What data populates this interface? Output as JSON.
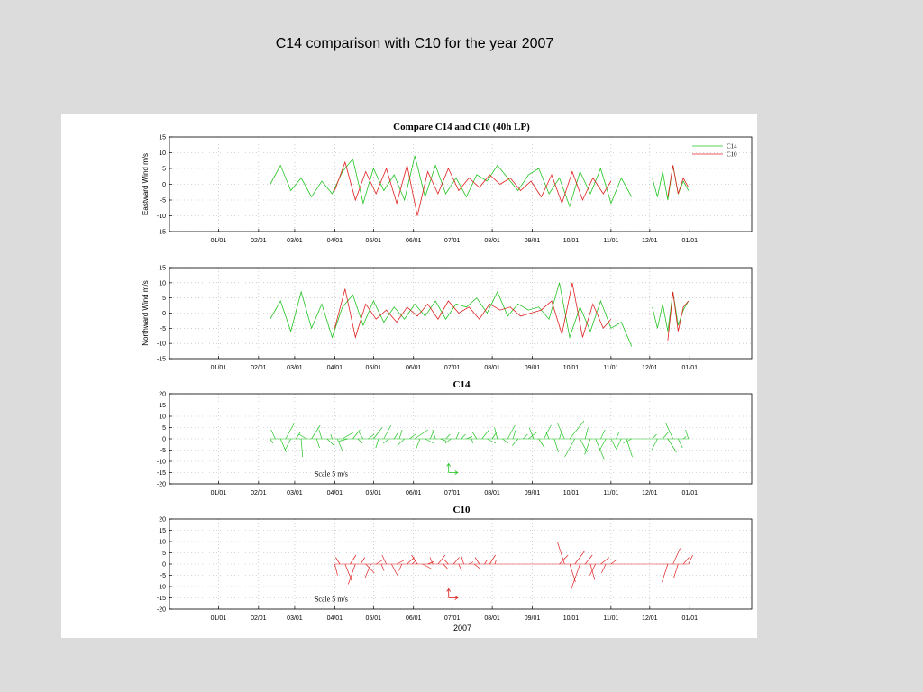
{
  "slide": {
    "title": "C14 comparison with C10 for the year 2007"
  },
  "colors": {
    "c14": "#22c422",
    "c10": "#e02020",
    "background": "#dcdcdc",
    "axis": "#000000",
    "grid": "#b0b0b0"
  },
  "chart_data": [
    {
      "type": "line",
      "title": "Compare C14 and C10 (40h LP)",
      "ylabel": "Eastward Wind m/s",
      "xlabel": "",
      "ylim": [
        -15,
        15
      ],
      "yticks": [
        15,
        10,
        5,
        0,
        -5,
        -10,
        -15
      ],
      "x_tick_labels": [
        "01/01",
        "02/01",
        "03/01",
        "04/01",
        "05/01",
        "06/01",
        "07/01",
        "08/01",
        "09/01",
        "10/01",
        "11/01",
        "12/01",
        "01/01"
      ],
      "x_tick_days": [
        0,
        31,
        59,
        90,
        120,
        151,
        181,
        212,
        243,
        273,
        304,
        334,
        365
      ],
      "grid": true,
      "legend": "top-right",
      "series": [
        {
          "name": "C14",
          "segments": [
            {
              "days": [
                40,
                48,
                56,
                64,
                72,
                80,
                88,
                96,
                104,
                112,
                120,
                128,
                136,
                144,
                152,
                160,
                168,
                176,
                184,
                192,
                200,
                208,
                216,
                224,
                232,
                240,
                248,
                256,
                264,
                272,
                280,
                288,
                296,
                304,
                312,
                320
              ],
              "values": [
                0,
                6,
                -2,
                2,
                -4,
                1,
                -3,
                4,
                8,
                -6,
                5,
                -2,
                3,
                -5,
                9,
                -4,
                6,
                -3,
                2,
                -4,
                3,
                1,
                6,
                2,
                -2,
                3,
                5,
                -3,
                2,
                -7,
                4,
                -3,
                5,
                -6,
                2,
                -4
              ]
            },
            {
              "days": [
                336,
                340,
                344,
                348,
                352,
                356,
                360,
                364
              ],
              "values": [
                2,
                -4,
                4,
                -5,
                6,
                -3,
                1,
                -2
              ]
            }
          ]
        },
        {
          "name": "C10",
          "segments": [
            {
              "days": [
                90,
                98,
                106,
                114,
                122,
                130,
                138,
                146,
                154,
                162,
                170,
                178,
                186,
                194,
                202,
                210,
                218,
                226,
                234,
                242,
                250,
                258,
                266,
                274,
                282,
                290,
                298,
                304
              ],
              "values": [
                -2,
                7,
                -5,
                4,
                -3,
                5,
                -6,
                6,
                -10,
                4,
                -3,
                5,
                -2,
                2,
                -1,
                3,
                0,
                2,
                -2,
                1,
                -4,
                3,
                -6,
                4,
                -5,
                2,
                -3,
                1
              ]
            },
            {
              "days": [
                348,
                352,
                356,
                360,
                364
              ],
              "values": [
                -4,
                6,
                -3,
                2,
                -1
              ]
            }
          ]
        }
      ]
    },
    {
      "type": "line",
      "title": "",
      "ylabel": "Northward Wind m/s",
      "xlabel": "",
      "ylim": [
        -15,
        15
      ],
      "yticks": [
        15,
        10,
        5,
        0,
        -5,
        -10,
        -15
      ],
      "x_tick_labels": [
        "01/01",
        "02/01",
        "03/01",
        "04/01",
        "05/01",
        "06/01",
        "07/01",
        "08/01",
        "09/01",
        "10/01",
        "11/01",
        "12/01",
        "01/01"
      ],
      "x_tick_days": [
        0,
        31,
        59,
        90,
        120,
        151,
        181,
        212,
        243,
        273,
        304,
        334,
        365
      ],
      "grid": true,
      "series": [
        {
          "name": "C14",
          "segments": [
            {
              "days": [
                40,
                48,
                56,
                64,
                72,
                80,
                88,
                96,
                104,
                112,
                120,
                128,
                136,
                144,
                152,
                160,
                168,
                176,
                184,
                192,
                200,
                208,
                216,
                224,
                232,
                240,
                248,
                256,
                264,
                272,
                280,
                288,
                296,
                304,
                312,
                320
              ],
              "values": [
                -2,
                4,
                -6,
                7,
                -5,
                3,
                -8,
                2,
                6,
                -4,
                4,
                -3,
                2,
                -2,
                3,
                -1,
                4,
                -2,
                3,
                2,
                5,
                0,
                7,
                -1,
                3,
                1,
                2,
                -2,
                10,
                -8,
                2,
                -6,
                4,
                -5,
                -3,
                -11
              ]
            },
            {
              "days": [
                336,
                340,
                344,
                348,
                352,
                356,
                360,
                364
              ],
              "values": [
                2,
                -5,
                3,
                -6,
                7,
                -4,
                1,
                4
              ]
            }
          ]
        },
        {
          "name": "C10",
          "segments": [
            {
              "days": [
                90,
                98,
                106,
                114,
                122,
                130,
                138,
                146,
                154,
                162,
                170,
                178,
                186,
                194,
                202,
                210,
                218,
                226,
                234,
                242,
                250,
                258,
                266,
                274,
                282,
                290,
                298,
                304
              ],
              "values": [
                -5,
                8,
                -8,
                3,
                -2,
                1,
                -3,
                2,
                -1,
                3,
                -2,
                4,
                0,
                2,
                -2,
                3,
                1,
                2,
                -1,
                0,
                1,
                4,
                -7,
                10,
                -8,
                3,
                -5,
                -2
              ]
            },
            {
              "days": [
                348,
                352,
                356,
                360,
                364
              ],
              "values": [
                -9,
                7,
                -6,
                2,
                4
              ]
            }
          ]
        }
      ]
    },
    {
      "type": "vector",
      "title": "C14",
      "ylabel": "",
      "xlabel": "",
      "ylim": [
        -20,
        20
      ],
      "yticks": [
        20,
        15,
        10,
        5,
        0,
        -5,
        -10,
        -15,
        -20
      ],
      "x_tick_labels": [
        "01/01",
        "02/01",
        "03/01",
        "04/01",
        "05/01",
        "06/01",
        "07/01",
        "08/01",
        "09/01",
        "10/01",
        "11/01",
        "12/01",
        "01/01"
      ],
      "x_tick_days": [
        0,
        31,
        59,
        90,
        120,
        151,
        181,
        212,
        243,
        273,
        304,
        334,
        365
      ],
      "grid": true,
      "scale_label": "Scale 5 m/s",
      "series": [
        {
          "name": "C14",
          "days": [
            40,
            44,
            48,
            52,
            56,
            60,
            64,
            68,
            72,
            76,
            80,
            84,
            88,
            92,
            96,
            100,
            104,
            108,
            112,
            116,
            120,
            124,
            128,
            132,
            136,
            140,
            144,
            148,
            152,
            156,
            160,
            164,
            168,
            172,
            176,
            180,
            184,
            188,
            192,
            196,
            200,
            204,
            208,
            212,
            216,
            220,
            224,
            228,
            232,
            236,
            240,
            244,
            248,
            252,
            256,
            260,
            264,
            268,
            272,
            276,
            280,
            284,
            288,
            292,
            296,
            300,
            304,
            308,
            312,
            316,
            320,
            336,
            340,
            344,
            348,
            352,
            356,
            360,
            364
          ],
          "u": [
            2,
            -3,
            4,
            6,
            -4,
            3,
            1,
            -5,
            6,
            2,
            -2,
            5,
            -1,
            4,
            8,
            -6,
            5,
            3,
            -3,
            4,
            6,
            -2,
            5,
            -4,
            3,
            2,
            -5,
            4,
            9,
            -3,
            6,
            2,
            -2,
            4,
            3,
            -4,
            2,
            3,
            4,
            1,
            -3,
            5,
            6,
            3,
            -2,
            4,
            5,
            2,
            -4,
            3,
            6,
            -3,
            4,
            5,
            -2,
            3,
            2,
            -5,
            10,
            -7,
            5,
            2,
            -4,
            6,
            3,
            -5,
            4,
            2,
            -3,
            4,
            -6,
            3,
            -4,
            4,
            6,
            -5,
            3,
            2,
            -2
          ],
          "v": [
            -2,
            4,
            -6,
            7,
            -5,
            3,
            -8,
            2,
            6,
            -4,
            4,
            -3,
            2,
            -6,
            3,
            -1,
            4,
            -2,
            3,
            2,
            5,
            -4,
            6,
            -2,
            3,
            4,
            -3,
            2,
            4,
            -5,
            -2,
            3,
            4,
            -1,
            2,
            -2,
            3,
            2,
            1,
            -2,
            3,
            4,
            -2,
            3,
            5,
            -2,
            6,
            4,
            -3,
            2,
            3,
            5,
            -4,
            6,
            3,
            -6,
            4,
            7,
            8,
            -8,
            -6,
            5,
            -7,
            -9,
            4,
            -6,
            -5,
            3,
            -4,
            -8,
            -2,
            2,
            -5,
            3,
            -6,
            7,
            -4,
            1,
            4
          ]
        }
      ]
    },
    {
      "type": "vector",
      "title": "C10",
      "ylabel": "",
      "xlabel": "2007",
      "ylim": [
        -20,
        20
      ],
      "yticks": [
        20,
        15,
        10,
        5,
        0,
        -5,
        -10,
        -15,
        -20
      ],
      "x_tick_labels": [
        "01/01",
        "02/01",
        "03/01",
        "04/01",
        "05/01",
        "06/01",
        "07/01",
        "08/01",
        "09/01",
        "10/01",
        "11/01",
        "12/01",
        "01/01"
      ],
      "x_tick_days": [
        0,
        31,
        59,
        90,
        120,
        151,
        181,
        212,
        243,
        273,
        304,
        334,
        365
      ],
      "grid": true,
      "scale_label": "Scale 5 m/s",
      "series": [
        {
          "name": "C10",
          "days": [
            90,
            94,
            98,
            102,
            106,
            110,
            114,
            118,
            122,
            126,
            130,
            134,
            138,
            142,
            146,
            150,
            154,
            158,
            162,
            166,
            170,
            174,
            178,
            182,
            186,
            190,
            194,
            198,
            202,
            206,
            210,
            214,
            264,
            268,
            272,
            276,
            280,
            284,
            288,
            292,
            296,
            300,
            304,
            348,
            352,
            356,
            360,
            364
          ],
          "u": [
            2,
            -3,
            5,
            4,
            -5,
            3,
            6,
            -4,
            5,
            2,
            -3,
            4,
            6,
            -2,
            5,
            3,
            -4,
            6,
            4,
            -2,
            5,
            3,
            -3,
            4,
            2,
            -2,
            3,
            4,
            -3,
            2,
            4,
            1,
            6,
            -5,
            4,
            7,
            -6,
            5,
            3,
            -4,
            6,
            -3,
            4,
            -4,
            5,
            -3,
            4,
            3
          ],
          "v": [
            -5,
            3,
            -8,
            4,
            -9,
            3,
            -4,
            -6,
            2,
            -3,
            4,
            -5,
            2,
            -3,
            3,
            2,
            4,
            -2,
            1,
            3,
            4,
            -2,
            2,
            3,
            -3,
            4,
            1,
            -2,
            3,
            2,
            4,
            2,
            4,
            10,
            -8,
            6,
            -11,
            4,
            -7,
            -5,
            3,
            -4,
            2,
            -8,
            7,
            -6,
            3,
            4
          ]
        }
      ]
    }
  ]
}
